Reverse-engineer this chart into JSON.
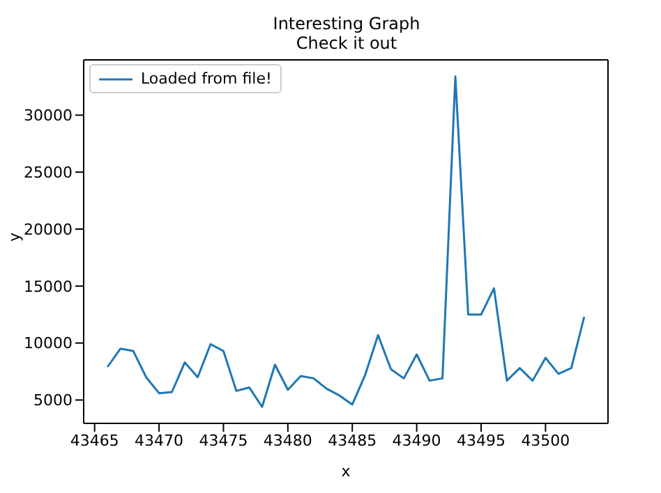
{
  "chart_data": {
    "type": "line",
    "title": "Interesting Graph",
    "subtitle": "Check it out",
    "xlabel": "x",
    "ylabel": "y",
    "x": [
      43466,
      43467,
      43468,
      43469,
      43470,
      43471,
      43472,
      43473,
      43474,
      43475,
      43476,
      43477,
      43478,
      43479,
      43480,
      43481,
      43482,
      43483,
      43484,
      43485,
      43486,
      43487,
      43488,
      43489,
      43490,
      43491,
      43492,
      43493,
      43494,
      43495,
      43496,
      43497,
      43498,
      43499,
      43500,
      43501,
      43502,
      43503
    ],
    "series": [
      {
        "name": "Loaded from file!",
        "color": "#1f77b4",
        "values": [
          7900,
          9500,
          9300,
          7000,
          5600,
          5700,
          8300,
          7000,
          9900,
          9300,
          5800,
          6100,
          4400,
          8100,
          5900,
          7100,
          6900,
          6000,
          5400,
          4600,
          7200,
          10700,
          7700,
          6900,
          9000,
          6700,
          6900,
          33400,
          12500,
          12500,
          14800,
          6700,
          7800,
          6700,
          8700,
          7300,
          7800,
          12300
        ]
      }
    ],
    "xlim": [
      43464.15,
      43504.85
    ],
    "xticks": [
      43465,
      43470,
      43475,
      43480,
      43485,
      43490,
      43495,
      43500
    ],
    "ylim": [
      2950,
      34850
    ],
    "yticks": [
      5000,
      10000,
      15000,
      20000,
      25000,
      30000
    ],
    "grid": false,
    "legend": "top left",
    "marker": "none",
    "line_style": "solid"
  }
}
